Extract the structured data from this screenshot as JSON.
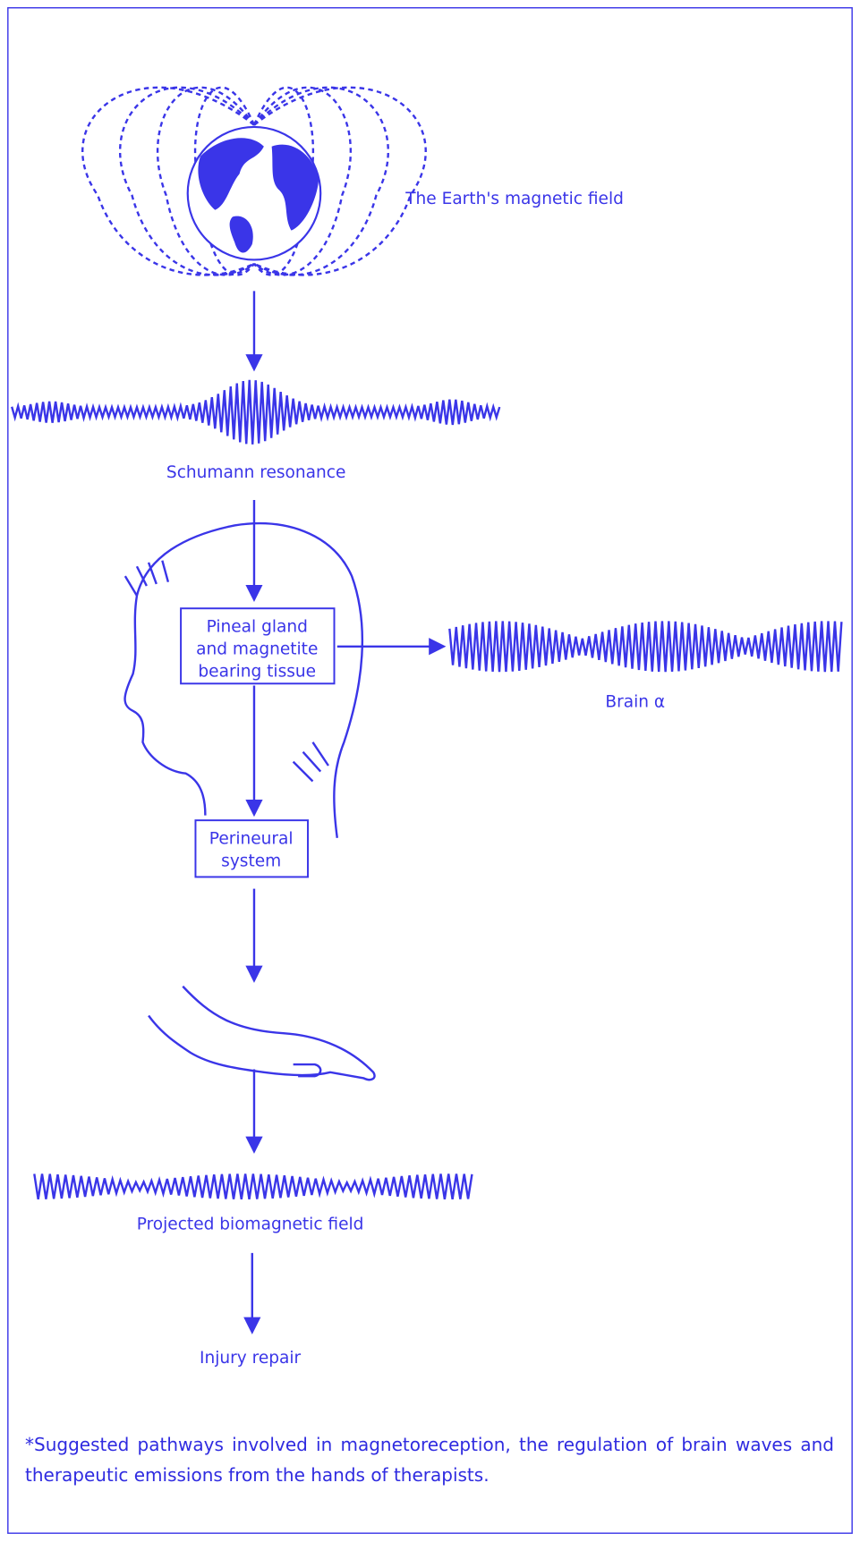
{
  "nodes": [
    {
      "label": "The Earth's magnetic field"
    },
    {
      "label": "Schumann resonance"
    },
    {
      "lines": [
        "Pineal gland",
        "and magnetite",
        "bearing tissue"
      ]
    },
    {
      "label": "Brain α"
    },
    {
      "lines": [
        "Perineural",
        "system"
      ]
    },
    {
      "label": "Projected biomagnetic field"
    },
    {
      "label": "Injury repair"
    }
  ],
  "caption": "*Suggested pathways involved in magnetoreception, the regulation of brain waves and therapeutic emissions from the hands of therapists."
}
